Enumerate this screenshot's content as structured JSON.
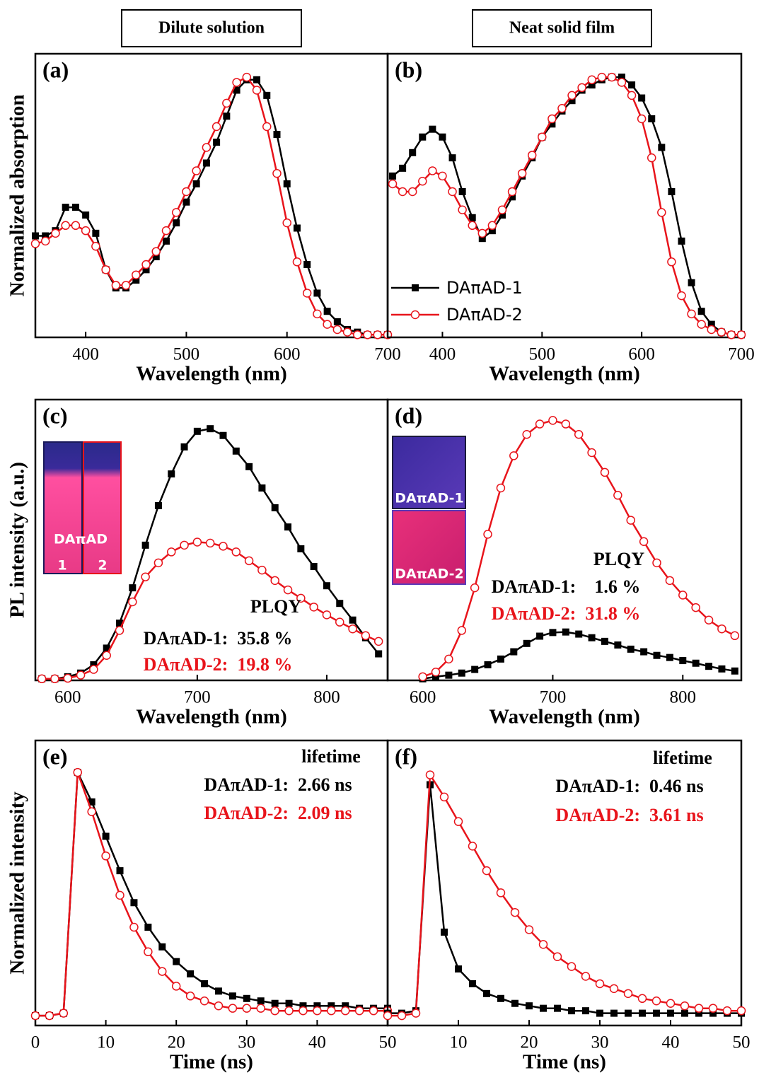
{
  "chart_data": [
    {
      "type": "line",
      "panel_label": "(a)",
      "title": "Dilute solution",
      "xlabel": "Wavelength (nm)",
      "ylabel": "Normalized absorption",
      "x": [
        350,
        360,
        370,
        380,
        390,
        400,
        410,
        420,
        430,
        440,
        450,
        460,
        470,
        480,
        490,
        500,
        510,
        520,
        530,
        540,
        550,
        560,
        570,
        580,
        590,
        600,
        610,
        620,
        630,
        640,
        650,
        660,
        670,
        680,
        690,
        700
      ],
      "xlim": [
        350,
        700
      ],
      "ylim": [
        0,
        1.09
      ],
      "xticks": [
        400,
        500,
        600,
        700
      ],
      "series": [
        {
          "color": "#000000",
          "marker": "square",
          "values": [
            0.39,
            0.39,
            0.41,
            0.5,
            0.5,
            0.47,
            0.4,
            0.26,
            0.19,
            0.19,
            0.22,
            0.26,
            0.31,
            0.37,
            0.44,
            0.52,
            0.59,
            0.67,
            0.75,
            0.85,
            0.95,
            0.99,
            0.99,
            0.93,
            0.78,
            0.59,
            0.42,
            0.28,
            0.17,
            0.1,
            0.06,
            0.03,
            0.02,
            0.01,
            0.01,
            0.01
          ]
        },
        {
          "color": "#e8141b",
          "marker": "circle-open",
          "values": [
            0.36,
            0.37,
            0.4,
            0.43,
            0.43,
            0.41,
            0.35,
            0.26,
            0.2,
            0.2,
            0.24,
            0.28,
            0.33,
            0.41,
            0.48,
            0.56,
            0.64,
            0.73,
            0.81,
            0.9,
            0.98,
            1.0,
            0.95,
            0.81,
            0.63,
            0.44,
            0.29,
            0.17,
            0.09,
            0.05,
            0.03,
            0.02,
            0.01,
            0.01,
            0.01,
            0.01
          ]
        }
      ]
    },
    {
      "type": "line",
      "panel_label": "(b)",
      "title": "Neat solid film",
      "xlabel": "Wavelength (nm)",
      "legend": "lower left",
      "x": [
        350,
        360,
        370,
        380,
        390,
        400,
        410,
        420,
        430,
        440,
        450,
        460,
        470,
        480,
        490,
        500,
        510,
        520,
        530,
        540,
        550,
        560,
        570,
        580,
        590,
        600,
        610,
        620,
        630,
        640,
        650,
        660,
        670,
        680,
        690,
        700
      ],
      "xlim": [
        345,
        700
      ],
      "ylim": [
        0,
        1.09
      ],
      "xticks": [
        400,
        500,
        600,
        700
      ],
      "series": [
        {
          "name": "DAπAD-1",
          "color": "#000000",
          "marker": "square",
          "values": [
            0.62,
            0.65,
            0.71,
            0.77,
            0.8,
            0.77,
            0.69,
            0.56,
            0.46,
            0.38,
            0.41,
            0.47,
            0.54,
            0.62,
            0.69,
            0.77,
            0.82,
            0.87,
            0.91,
            0.95,
            0.97,
            0.99,
            1.0,
            1.0,
            0.97,
            0.92,
            0.84,
            0.73,
            0.56,
            0.37,
            0.21,
            0.1,
            0.05,
            0.02,
            0.01,
            0.01
          ]
        },
        {
          "name": "DAπAD-2",
          "color": "#e8141b",
          "marker": "circle-open",
          "values": [
            0.59,
            0.56,
            0.56,
            0.6,
            0.64,
            0.62,
            0.56,
            0.49,
            0.43,
            0.4,
            0.43,
            0.49,
            0.56,
            0.63,
            0.7,
            0.77,
            0.84,
            0.88,
            0.93,
            0.96,
            0.99,
            1.0,
            1.0,
            0.98,
            0.93,
            0.84,
            0.69,
            0.48,
            0.29,
            0.16,
            0.09,
            0.05,
            0.03,
            0.02,
            0.01,
            0.01
          ]
        }
      ]
    },
    {
      "type": "line",
      "panel_label": "(c)",
      "xlabel": "Wavelength (nm)",
      "ylabel": "PL intensity (a.u.)",
      "x": [
        580,
        590,
        600,
        610,
        620,
        630,
        640,
        650,
        660,
        670,
        680,
        690,
        700,
        710,
        720,
        730,
        740,
        750,
        760,
        770,
        780,
        790,
        800,
        810,
        820,
        830,
        840
      ],
      "xlim": [
        575,
        847
      ],
      "ylim": [
        0,
        5.4
      ],
      "xticks": [
        600,
        700,
        800
      ],
      "series": [
        {
          "color": "#000000",
          "marker": "square",
          "values": [
            0.03,
            0.03,
            0.07,
            0.14,
            0.3,
            0.62,
            1.1,
            1.78,
            2.6,
            3.36,
            3.97,
            4.49,
            4.79,
            4.84,
            4.71,
            4.41,
            4.11,
            3.7,
            3.32,
            2.95,
            2.53,
            2.19,
            1.82,
            1.48,
            1.16,
            0.82,
            0.51
          ]
        },
        {
          "color": "#e8141b",
          "marker": "circle-open",
          "values": [
            0.03,
            0.03,
            0.04,
            0.1,
            0.21,
            0.48,
            0.96,
            1.51,
            1.99,
            2.26,
            2.47,
            2.6,
            2.66,
            2.64,
            2.58,
            2.47,
            2.3,
            2.12,
            1.92,
            1.74,
            1.58,
            1.41,
            1.26,
            1.12,
            0.99,
            0.86,
            0.75
          ]
        }
      ],
      "annotations": [
        {
          "text": "PLQY",
          "color": "#000000"
        },
        {
          "text": "DAπAD-1:  35.8 %",
          "color": "#000000"
        },
        {
          "text": "DAπAD-2:  19.8 %",
          "color": "#e8141b"
        }
      ],
      "inset_labels": [
        "DAπAD",
        "1",
        "2"
      ]
    },
    {
      "type": "line",
      "panel_label": "(d)",
      "xlabel": "Wavelength (nm)",
      "x": [
        600,
        610,
        620,
        630,
        640,
        650,
        660,
        670,
        680,
        690,
        700,
        710,
        720,
        730,
        740,
        750,
        760,
        770,
        780,
        790,
        800,
        810,
        820,
        830,
        840
      ],
      "xlim": [
        573,
        845
      ],
      "ylim": [
        0,
        5.4
      ],
      "xticks": [
        600,
        700,
        800
      ],
      "series": [
        {
          "color": "#000000",
          "marker": "square",
          "values": [
            0.03,
            0.07,
            0.1,
            0.14,
            0.21,
            0.3,
            0.41,
            0.55,
            0.71,
            0.85,
            0.92,
            0.93,
            0.89,
            0.82,
            0.75,
            0.68,
            0.6,
            0.55,
            0.48,
            0.44,
            0.38,
            0.33,
            0.27,
            0.22,
            0.18
          ]
        },
        {
          "color": "#e8141b",
          "marker": "circle-open",
          "values": [
            0.07,
            0.16,
            0.41,
            0.96,
            1.78,
            2.81,
            3.7,
            4.32,
            4.73,
            4.93,
            5.0,
            4.93,
            4.73,
            4.38,
            4.0,
            3.56,
            3.08,
            2.67,
            2.26,
            1.92,
            1.64,
            1.4,
            1.16,
            0.99,
            0.86
          ]
        }
      ],
      "annotations": [
        {
          "text": "PLQY",
          "color": "#000000"
        },
        {
          "text": "DAπAD-1:    1.6 %",
          "color": "#000000"
        },
        {
          "text": "DAπAD-2:  31.8 %",
          "color": "#e8141b"
        }
      ],
      "inset_labels": [
        "DAπAD-1",
        "DAπAD-2"
      ]
    },
    {
      "type": "line",
      "panel_label": "(e)",
      "xlabel": "Time (ns)",
      "ylabel": "Normalized intensity",
      "x": [
        0,
        2,
        4,
        6,
        8,
        10,
        12,
        14,
        16,
        18,
        20,
        22,
        24,
        26,
        28,
        30,
        32,
        34,
        36,
        38,
        40,
        42,
        44,
        46,
        48,
        50
      ],
      "xlim": [
        0,
        50
      ],
      "ylim": [
        -0.03,
        1.13
      ],
      "xticks": [
        0,
        10,
        20,
        30,
        40,
        50
      ],
      "series": [
        {
          "color": "#000000",
          "marker": "square",
          "values": [
            0.01,
            0.01,
            0.02,
            1.0,
            0.88,
            0.74,
            0.6,
            0.47,
            0.37,
            0.29,
            0.23,
            0.18,
            0.14,
            0.11,
            0.09,
            0.08,
            0.07,
            0.06,
            0.06,
            0.05,
            0.05,
            0.05,
            0.05,
            0.04,
            0.04,
            0.04
          ]
        },
        {
          "color": "#e8141b",
          "marker": "circle-open",
          "values": [
            0.01,
            0.01,
            0.02,
            1.0,
            0.84,
            0.66,
            0.5,
            0.37,
            0.27,
            0.19,
            0.13,
            0.09,
            0.07,
            0.05,
            0.04,
            0.04,
            0.04,
            0.03,
            0.03,
            0.03,
            0.03,
            0.03,
            0.03,
            0.03,
            0.03,
            0.03
          ]
        }
      ],
      "annotations": [
        {
          "text": "lifetime",
          "color": "#000000"
        },
        {
          "text": "DAπAD-1:  2.66 ns",
          "color": "#000000"
        },
        {
          "text": "DAπAD-2:  2.09 ns",
          "color": "#e8141b"
        }
      ]
    },
    {
      "type": "line",
      "panel_label": "(f)",
      "xlabel": "Time (ns)",
      "x": [
        0,
        2,
        4,
        6,
        8,
        10,
        12,
        14,
        16,
        18,
        20,
        22,
        24,
        26,
        28,
        30,
        32,
        34,
        36,
        38,
        40,
        42,
        44,
        46,
        48,
        50
      ],
      "xlim": [
        0,
        50
      ],
      "ylim": [
        -0.03,
        1.13
      ],
      "xticks": [
        10,
        20,
        30,
        40,
        50
      ],
      "series": [
        {
          "color": "#000000",
          "marker": "square",
          "values": [
            0.02,
            0.02,
            0.03,
            0.95,
            0.35,
            0.2,
            0.14,
            0.1,
            0.08,
            0.06,
            0.05,
            0.04,
            0.04,
            0.03,
            0.03,
            0.02,
            0.02,
            0.02,
            0.02,
            0.02,
            0.02,
            0.02,
            0.02,
            0.02,
            0.02,
            0.02
          ]
        },
        {
          "color": "#e8141b",
          "marker": "circle-open",
          "values": [
            0.01,
            0.01,
            0.02,
            0.99,
            0.9,
            0.8,
            0.7,
            0.6,
            0.51,
            0.43,
            0.36,
            0.3,
            0.25,
            0.21,
            0.17,
            0.14,
            0.12,
            0.1,
            0.08,
            0.07,
            0.06,
            0.05,
            0.04,
            0.04,
            0.03,
            0.03
          ]
        }
      ],
      "annotations": [
        {
          "text": "lifetime",
          "color": "#000000"
        },
        {
          "text": "DAπAD-1:  0.46 ns",
          "color": "#000000"
        },
        {
          "text": "DAπAD-2:  3.61 ns",
          "color": "#e8141b"
        }
      ]
    }
  ]
}
